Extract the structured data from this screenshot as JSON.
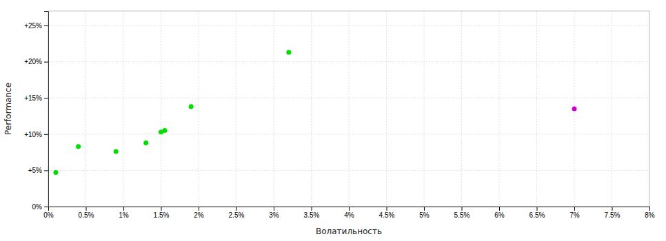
{
  "chart_data": {
    "type": "scatter",
    "xlabel": "Волатильность",
    "ylabel": "Performance",
    "xlim": [
      0.0,
      0.08
    ],
    "ylim": [
      0.0,
      0.27
    ],
    "xticks": [
      {
        "value": 0.0,
        "label": "0%"
      },
      {
        "value": 0.005,
        "label": "0.5%"
      },
      {
        "value": 0.01,
        "label": "1%"
      },
      {
        "value": 0.015,
        "label": "1.5%"
      },
      {
        "value": 0.02,
        "label": "2%"
      },
      {
        "value": 0.025,
        "label": "2.5%"
      },
      {
        "value": 0.03,
        "label": "3%"
      },
      {
        "value": 0.035,
        "label": "3.5%"
      },
      {
        "value": 0.04,
        "label": "4%"
      },
      {
        "value": 0.045,
        "label": "4.5%"
      },
      {
        "value": 0.05,
        "label": "5%"
      },
      {
        "value": 0.055,
        "label": "5.5%"
      },
      {
        "value": 0.06,
        "label": "6%"
      },
      {
        "value": 0.065,
        "label": "6.5%"
      },
      {
        "value": 0.07,
        "label": "7%"
      },
      {
        "value": 0.075,
        "label": "7.5%"
      },
      {
        "value": 0.08,
        "label": "8%"
      }
    ],
    "yticks": [
      {
        "value": 0.0,
        "label": "0%"
      },
      {
        "value": 0.05,
        "label": "+5%"
      },
      {
        "value": 0.1,
        "label": "+10%"
      },
      {
        "value": 0.15,
        "label": "+15%"
      },
      {
        "value": 0.2,
        "label": "+20%"
      },
      {
        "value": 0.25,
        "label": "+25%"
      }
    ],
    "grid": true,
    "series": [
      {
        "color": "#00dd00",
        "x": [
          0.001,
          0.004,
          0.009,
          0.013,
          0.015,
          0.0155,
          0.019,
          0.032
        ],
        "values": [
          0.047,
          0.083,
          0.076,
          0.088,
          0.103,
          0.105,
          0.138,
          0.213
        ]
      },
      {
        "color": "#cc00cc",
        "x": [
          0.07
        ],
        "values": [
          0.135
        ]
      }
    ]
  }
}
